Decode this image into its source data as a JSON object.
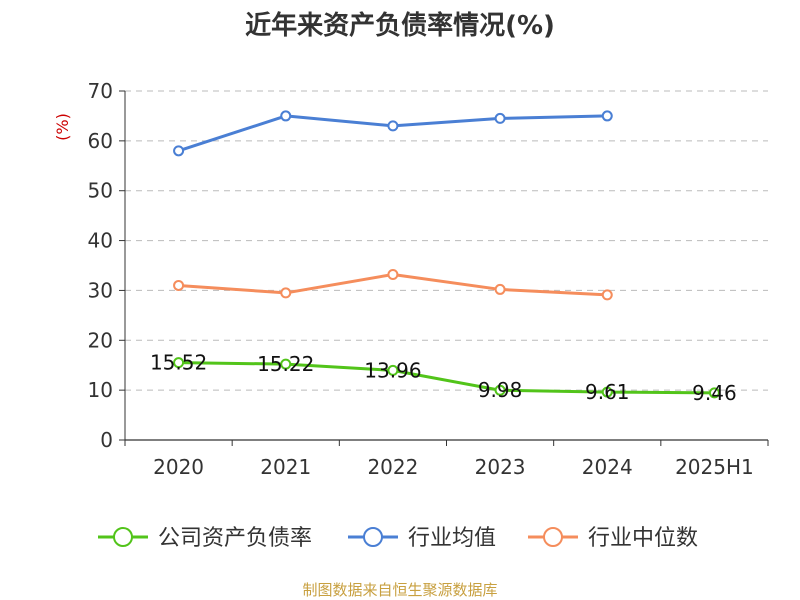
{
  "chart_data": {
    "type": "line",
    "title": "近年来资产负债率情况(%)",
    "ylabel": "(%)",
    "xlabel": "",
    "categories": [
      "2020",
      "2021",
      "2022",
      "2023",
      "2024",
      "2025H1"
    ],
    "ylim": [
      0,
      70
    ],
    "yticks": [
      "0",
      "10",
      "20",
      "30",
      "40",
      "50",
      "60",
      "70"
    ],
    "grid": true,
    "legend_position": "bottom",
    "series": [
      {
        "name": "公司资产负债率",
        "color": "#52c41a",
        "values": [
          15.52,
          15.22,
          13.96,
          9.98,
          9.61,
          9.46
        ],
        "labels": [
          "15.52",
          "15.22",
          "13.96",
          "9.98",
          "9.61",
          "9.46"
        ]
      },
      {
        "name": "行业均值",
        "color": "#4a7fd4",
        "values": [
          58.0,
          65.0,
          63.0,
          64.5,
          65.0,
          null
        ]
      },
      {
        "name": "行业中位数",
        "color": "#f58d5c",
        "values": [
          31.0,
          29.5,
          33.2,
          30.2,
          29.1,
          null
        ]
      }
    ]
  },
  "source": "制图数据来自恒生聚源数据库"
}
